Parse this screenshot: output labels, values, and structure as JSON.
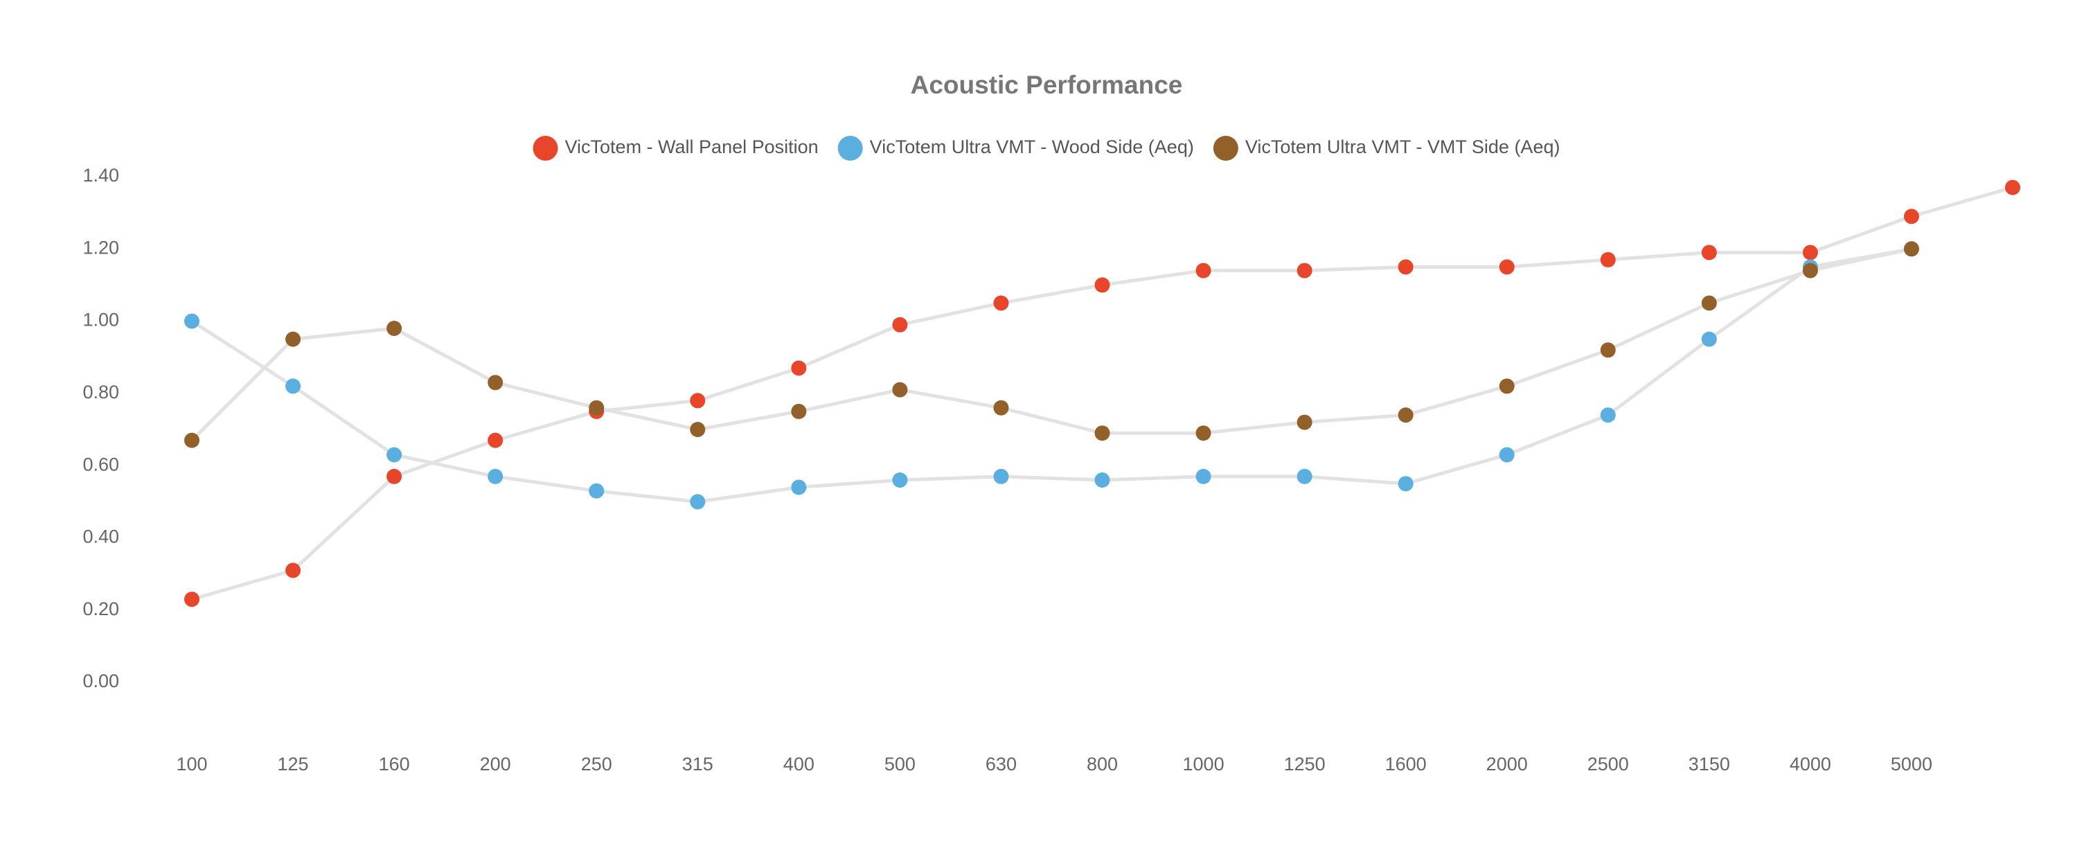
{
  "chart_data": {
    "type": "line",
    "title": "Acoustic Performance",
    "categories": [
      "100",
      "125",
      "160",
      "200",
      "250",
      "315",
      "400",
      "500",
      "630",
      "800",
      "1000",
      "1250",
      "1600",
      "2000",
      "2500",
      "3150",
      "4000",
      "5000",
      null
    ],
    "series": [
      {
        "name": "VicTotem - Wall Panel Position",
        "color": "#e8462a",
        "values": [
          0.23,
          0.31,
          0.57,
          0.67,
          0.75,
          0.78,
          0.87,
          0.99,
          1.05,
          1.1,
          1.14,
          1.14,
          1.15,
          1.15,
          1.17,
          1.19,
          1.19,
          1.29,
          1.37
        ]
      },
      {
        "name": "VicTotem Ultra VMT - Wood Side (Aeq)",
        "color": "#5aafe0",
        "values": [
          1.0,
          0.82,
          0.63,
          0.57,
          0.53,
          0.5,
          0.54,
          0.56,
          0.57,
          0.56,
          0.57,
          0.57,
          0.55,
          0.63,
          0.74,
          0.95,
          1.15,
          1.2,
          null
        ]
      },
      {
        "name": "VicTotem Ultra VMT - VMT Side (Aeq)",
        "color": "#93602a",
        "values": [
          0.67,
          0.95,
          0.98,
          0.83,
          0.76,
          0.7,
          0.75,
          0.81,
          0.76,
          0.69,
          0.69,
          0.72,
          0.74,
          0.82,
          0.92,
          1.05,
          1.14,
          1.2,
          null
        ]
      }
    ],
    "ylim": [
      0,
      1.4
    ],
    "yticks": [
      {
        "value": 0,
        "label": "0.00"
      },
      {
        "value": 0.2,
        "label": "0.20"
      },
      {
        "value": 0.4,
        "label": "0.40"
      },
      {
        "value": 0.6,
        "label": "0.60"
      },
      {
        "value": 0.8,
        "label": "0.80"
      },
      {
        "value": 1.0,
        "label": "1.00"
      },
      {
        "value": 1.2,
        "label": "1.20"
      },
      {
        "value": 1.4,
        "label": "1.40"
      }
    ],
    "line_color": "#e2e2e2",
    "legend": "top",
    "grid": false
  }
}
